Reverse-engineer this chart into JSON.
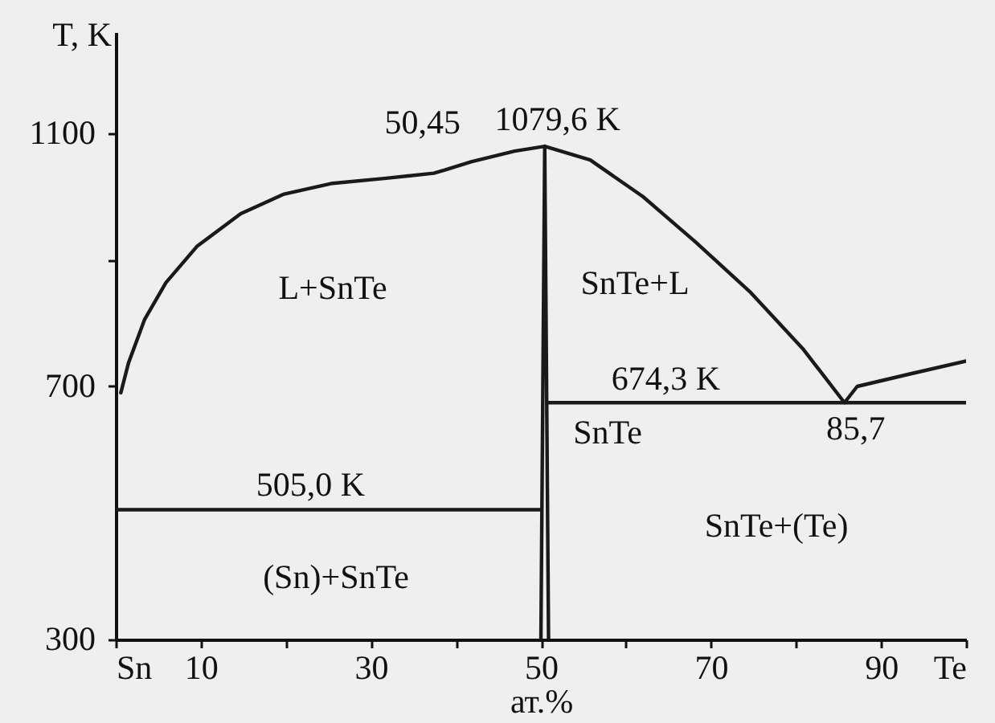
{
  "chart_data": {
    "type": "line",
    "xlabel": "ат.%",
    "ylabel": "T, K",
    "xlim": [
      0,
      100
    ],
    "ylim": [
      300,
      1260
    ],
    "xticks": [
      {
        "value": 0,
        "label": "Sn"
      },
      10,
      {
        "value": 20,
        "label": null
      },
      30,
      {
        "value": 40,
        "label": null
      },
      50,
      {
        "value": 60,
        "label": null
      },
      70,
      {
        "value": 80,
        "label": null
      },
      90,
      {
        "value": 100,
        "label": "Te"
      }
    ],
    "yticks": [
      300,
      700,
      {
        "value": 900,
        "label": null
      },
      1100
    ],
    "grid": false,
    "series": [
      {
        "color": "#1a1a1a",
        "x": [
          0.6,
          1.5,
          3.4,
          5.9,
          9.6,
          14.7,
          19.8,
          25.5,
          31.8,
          37.4,
          38.7,
          41.8,
          46.9,
          50.45,
          55.8,
          62.0,
          68.2,
          74.7,
          80.9,
          85.7,
          87.2,
          93.5,
          100
        ],
        "values": [
          690,
          737,
          806,
          864,
          922,
          973,
          1004,
          1021,
          1029,
          1037,
          1042,
          1055,
          1072,
          1079.6,
          1058,
          1000,
          928,
          848,
          758,
          674.3,
          700,
          720,
          740
        ]
      },
      {
        "color": "#1a1a1a",
        "x": [
          50.9,
          100
        ],
        "values": [
          674.3,
          674.3
        ]
      },
      {
        "color": "#1a1a1a",
        "x": [
          0,
          50.0
        ],
        "values": [
          505.0,
          505.0
        ]
      },
      {
        "color": "#1a1a1a",
        "x": [
          50.0,
          50.45,
          50.9
        ],
        "values": [
          300,
          1079.6,
          300
        ]
      }
    ],
    "annotations": [
      {
        "text": "50,45",
        "x": 50.45,
        "y": 1079.6
      },
      {
        "text": "1079,6 K",
        "x": 50.45,
        "y": 1079.6
      },
      "L+SnTe",
      "SnTe+L",
      {
        "text": "505,0 K",
        "x": 22.9,
        "y": 505.0
      },
      "(Sn)+SnTe",
      {
        "text": "674,3 K",
        "x": 64.7,
        "y": 674.3
      },
      "SnTe",
      {
        "text": "85,7",
        "x": 85.7,
        "y": 674.3
      },
      "SnTe+(Te)"
    ]
  }
}
